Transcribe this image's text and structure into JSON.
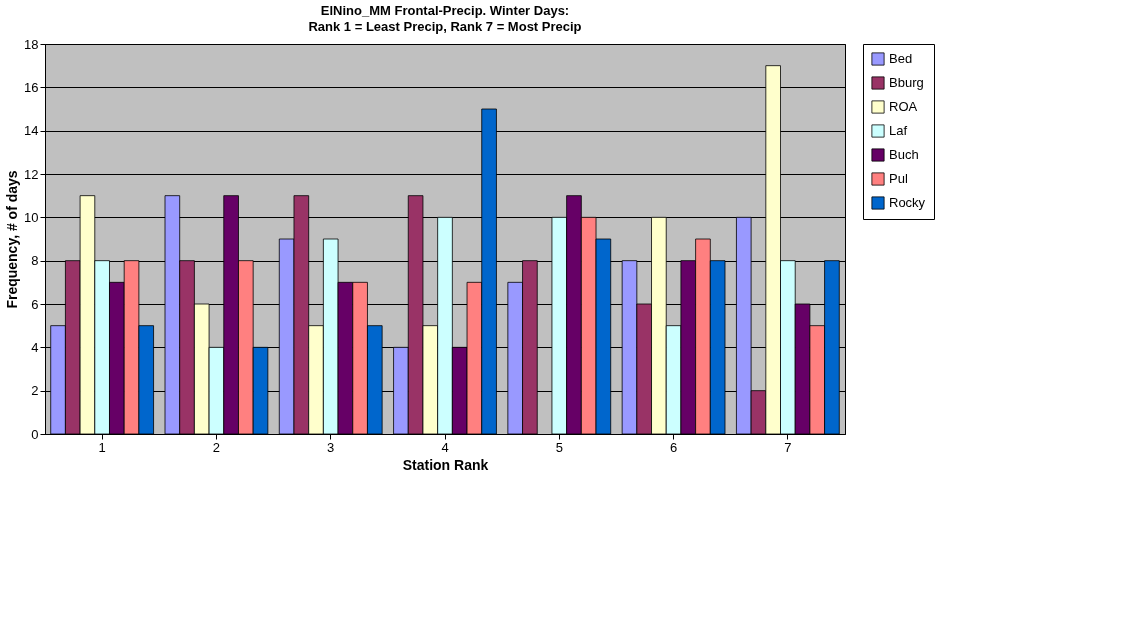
{
  "chart_data": {
    "type": "bar",
    "title": "ElNino_MM Frontal-Precip. Winter Days:",
    "subtitle": "Rank 1 = Least Precip, Rank 7 = Most Precip",
    "xlabel": "Station Rank",
    "ylabel": "Frequency, # of days",
    "categories": [
      "1",
      "2",
      "3",
      "4",
      "5",
      "6",
      "7"
    ],
    "series": [
      {
        "name": "Bed",
        "color": "#9999ff",
        "values": [
          5,
          11,
          9,
          4,
          7,
          8,
          10
        ]
      },
      {
        "name": "Bburg",
        "color": "#993366",
        "values": [
          8,
          8,
          11,
          11,
          8,
          6,
          2
        ]
      },
      {
        "name": "ROA",
        "color": "#ffffcc",
        "values": [
          11,
          6,
          5,
          5,
          null,
          10,
          17
        ]
      },
      {
        "name": "Laf",
        "color": "#ccffff",
        "values": [
          8,
          4,
          9,
          10,
          10,
          5,
          8
        ]
      },
      {
        "name": "Buch",
        "color": "#660066",
        "values": [
          7,
          11,
          7,
          4,
          11,
          8,
          6
        ]
      },
      {
        "name": "Pul",
        "color": "#ff8080",
        "values": [
          8,
          8,
          7,
          7,
          10,
          9,
          5
        ]
      },
      {
        "name": "Rocky",
        "color": "#0066cc",
        "values": [
          5,
          4,
          5,
          15,
          9,
          8,
          8
        ]
      }
    ],
    "ylim": [
      0,
      18
    ],
    "yticks": [
      0,
      2,
      4,
      6,
      8,
      10,
      12,
      14,
      16,
      18
    ],
    "grid": "y",
    "legend": "top right"
  }
}
